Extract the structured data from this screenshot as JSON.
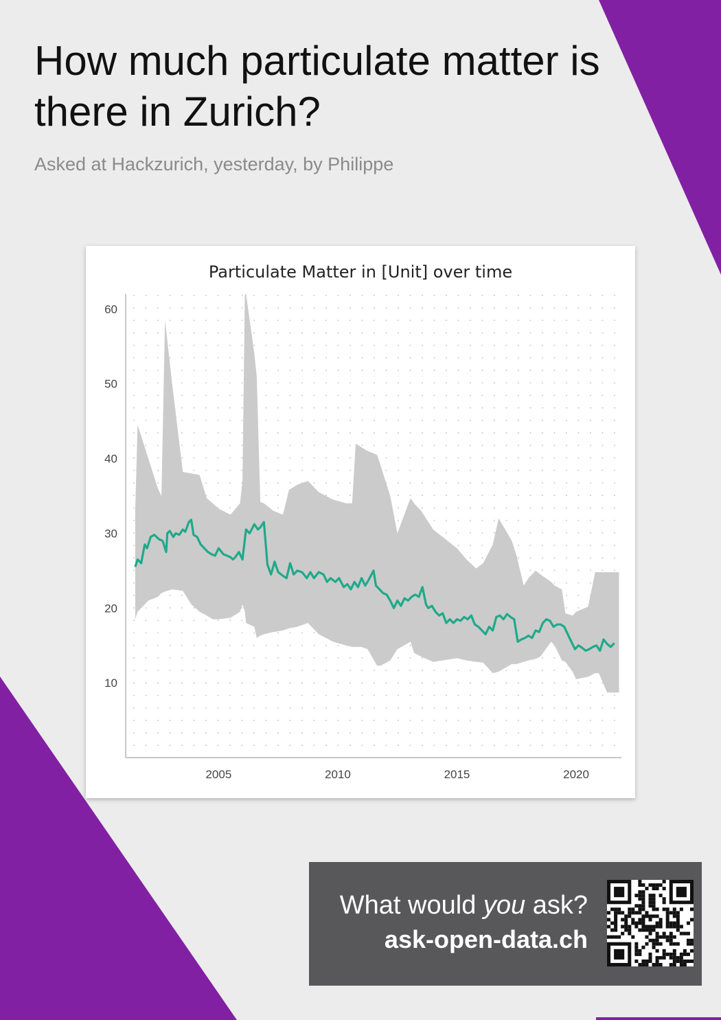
{
  "page": {
    "title": "How much particulate matter is there in Zurich?",
    "subtitle": "Asked at Hackzurich, yesterday, by Philippe"
  },
  "cta": {
    "question_prefix": "What would ",
    "question_emph": "you",
    "question_suffix": " ask?",
    "site": "ask-open-data.ch"
  },
  "colors": {
    "accent_purple": "#8220a3",
    "line": "#1fa98a",
    "band": "#cbcbcb",
    "cta_background": "#58585a"
  },
  "icons": {
    "qr": "qr-code-icon"
  },
  "chart_data": {
    "type": "line",
    "title": "Particulate Matter in [Unit] over time",
    "xlabel": "",
    "ylabel": "",
    "xlim": [
      2001.1,
      2021.9
    ],
    "ylim": [
      0,
      62
    ],
    "xticks": [
      2005,
      2010,
      2015,
      2020
    ],
    "yticks": [
      10,
      20,
      30,
      40,
      50,
      60
    ],
    "grid": "dotted",
    "series": [
      {
        "type": "line",
        "x": [
          2001.5,
          2001.6,
          2001.75,
          2001.9,
          2002.0,
          2002.15,
          2002.3,
          2002.5,
          2002.65,
          2002.8,
          2002.85,
          2002.95,
          2003.1,
          2003.2,
          2003.35,
          2003.5,
          2003.6,
          2003.75,
          2003.85,
          2003.95,
          2004.1,
          2004.25,
          2004.4,
          2004.55,
          2004.7,
          2004.85,
          2005.0,
          2005.2,
          2005.35,
          2005.5,
          2005.6,
          2005.7,
          2005.85,
          2006.0,
          2006.15,
          2006.3,
          2006.5,
          2006.65,
          2006.75,
          2006.9,
          2007.05,
          2007.2,
          2007.35,
          2007.5,
          2007.7,
          2007.85,
          2008.0,
          2008.15,
          2008.3,
          2008.5,
          2008.7,
          2008.85,
          2009.0,
          2009.2,
          2009.4,
          2009.55,
          2009.7,
          2009.9,
          2010.05,
          2010.25,
          2010.4,
          2010.55,
          2010.7,
          2010.85,
          2011.0,
          2011.15,
          2011.3,
          2011.5,
          2011.6,
          2011.75,
          2011.9,
          2012.05,
          2012.2,
          2012.35,
          2012.5,
          2012.65,
          2012.8,
          2012.95,
          2013.1,
          2013.25,
          2013.4,
          2013.55,
          2013.7,
          2013.8,
          2013.95,
          2014.1,
          2014.25,
          2014.4,
          2014.55,
          2014.7,
          2014.85,
          2015.0,
          2015.15,
          2015.3,
          2015.45,
          2015.6,
          2015.75,
          2015.9,
          2016.05,
          2016.2,
          2016.35,
          2016.5,
          2016.65,
          2016.8,
          2016.95,
          2017.1,
          2017.25,
          2017.4,
          2017.55,
          2017.7,
          2017.85,
          2018.0,
          2018.15,
          2018.3,
          2018.45,
          2018.6,
          2018.75,
          2018.9,
          2019.05,
          2019.2,
          2019.35,
          2019.5,
          2019.65,
          2019.8,
          2019.95,
          2020.1,
          2020.25,
          2020.4,
          2020.55,
          2020.7,
          2020.85,
          2021.0,
          2021.15,
          2021.3,
          2021.45,
          2021.6
        ],
        "y": [
          25.5,
          26.5,
          26.0,
          28.5,
          28.0,
          29.5,
          29.8,
          29.2,
          29.0,
          27.5,
          30.0,
          30.3,
          29.5,
          30.0,
          29.8,
          30.5,
          30.2,
          31.5,
          31.8,
          29.8,
          29.5,
          28.5,
          28.0,
          27.5,
          27.2,
          27.0,
          28.0,
          27.2,
          27.0,
          26.8,
          26.5,
          26.8,
          27.5,
          26.5,
          30.5,
          30.0,
          31.2,
          30.5,
          30.8,
          31.5,
          25.8,
          24.5,
          26.2,
          24.8,
          24.3,
          24.0,
          26.0,
          24.5,
          25.0,
          24.8,
          24.0,
          24.8,
          24.0,
          24.8,
          24.5,
          23.5,
          24.0,
          23.5,
          24.0,
          22.8,
          23.2,
          22.5,
          23.5,
          22.8,
          24.0,
          23.0,
          23.8,
          25.0,
          23.0,
          22.5,
          22.0,
          21.8,
          21.0,
          20.0,
          21.0,
          20.3,
          21.3,
          21.0,
          21.5,
          21.8,
          21.5,
          22.8,
          20.5,
          20.0,
          20.3,
          19.5,
          19.0,
          19.3,
          18.0,
          18.5,
          18.0,
          18.5,
          18.3,
          18.8,
          18.5,
          19.0,
          17.8,
          17.5,
          17.0,
          16.5,
          17.5,
          17.0,
          18.8,
          19.0,
          18.5,
          19.2,
          18.8,
          18.5,
          15.5,
          15.8,
          16.0,
          16.3,
          16.0,
          17.0,
          16.8,
          18.0,
          18.5,
          18.3,
          17.5,
          17.8,
          17.8,
          17.5,
          16.5,
          15.5,
          14.5,
          15.0,
          14.7,
          14.3,
          14.5,
          14.8,
          15.0,
          14.3,
          15.8,
          15.2,
          14.8,
          15.3
        ]
      },
      {
        "type": "band",
        "x": [
          2001.5,
          2001.6,
          2002.05,
          2002.45,
          2002.6,
          2002.75,
          2003.05,
          2003.5,
          2003.85,
          2004.2,
          2004.5,
          2004.75,
          2005.0,
          2005.5,
          2005.9,
          2006.0,
          2006.1,
          2006.15,
          2006.5,
          2006.6,
          2006.75,
          2006.9,
          2007.3,
          2007.7,
          2007.95,
          2008.3,
          2008.75,
          2009.2,
          2009.8,
          2010.35,
          2010.6,
          2010.75,
          2011.0,
          2011.25,
          2011.65,
          2011.8,
          2012.2,
          2012.5,
          2013.05,
          2013.2,
          2013.5,
          2014.0,
          2014.4,
          2015.0,
          2015.4,
          2015.8,
          2016.1,
          2016.5,
          2016.75,
          2017.3,
          2017.5,
          2017.8,
          2018.0,
          2018.3,
          2018.5,
          2018.95,
          2019.1,
          2019.4,
          2019.55,
          2019.85,
          2020.0,
          2020.5,
          2020.8,
          2020.95,
          2021.3,
          2021.5,
          2021.8
        ],
        "upper": [
          33,
          44.5,
          40,
          36,
          35,
          58.5,
          50,
          38.2,
          38.0,
          37.8,
          34.7,
          34.0,
          33.3,
          32.5,
          34.0,
          37.0,
          62,
          62,
          54,
          51,
          34.2,
          34.0,
          33.0,
          32.5,
          35.8,
          36.5,
          37.0,
          35.5,
          34.5,
          34.0,
          34.0,
          42.0,
          41.5,
          41.0,
          40.5,
          39.0,
          35.0,
          30.0,
          34.7,
          34.0,
          33.0,
          30.5,
          29.5,
          28.0,
          26.5,
          25.3,
          26.0,
          28.5,
          32.0,
          29.0,
          27.0,
          23.0,
          24.0,
          25.0,
          24.5,
          23.5,
          23.0,
          22.5,
          19.3,
          19.0,
          19.5,
          20.2,
          24.8,
          24.8,
          24.8,
          24.8,
          24.8
        ],
        "lower": [
          18.5,
          19.5,
          21.0,
          21.5,
          22.0,
          22.2,
          22.5,
          22.3,
          20.5,
          19.5,
          19.0,
          18.5,
          18.5,
          18.7,
          19.5,
          20.5,
          19.5,
          18.0,
          17.5,
          16.0,
          16.3,
          16.5,
          16.8,
          17.0,
          17.3,
          17.5,
          18.0,
          16.5,
          15.5,
          15.0,
          14.8,
          14.8,
          14.8,
          14.5,
          12.3,
          12.3,
          13.0,
          14.5,
          15.5,
          14.0,
          13.5,
          12.8,
          13.0,
          13.3,
          13.0,
          12.8,
          12.7,
          11.3,
          11.5,
          12.5,
          12.5,
          12.8,
          13.0,
          13.2,
          13.5,
          15.5,
          15.0,
          13.0,
          12.8,
          11.5,
          10.5,
          10.8,
          11.3,
          11.3,
          8.7,
          8.7,
          8.7
        ]
      }
    ]
  }
}
